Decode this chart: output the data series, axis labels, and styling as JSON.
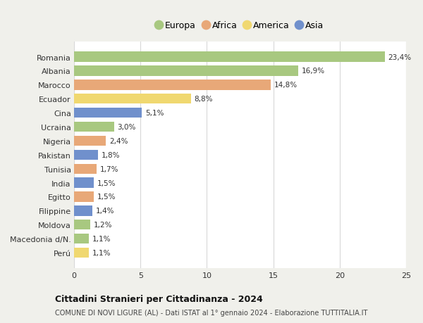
{
  "categories": [
    "Romania",
    "Albania",
    "Marocco",
    "Ecuador",
    "Cina",
    "Ucraina",
    "Nigeria",
    "Pakistan",
    "Tunisia",
    "India",
    "Egitto",
    "Filippine",
    "Moldova",
    "Macedonia d/N.",
    "Perú"
  ],
  "values": [
    23.4,
    16.9,
    14.8,
    8.8,
    5.1,
    3.0,
    2.4,
    1.8,
    1.7,
    1.5,
    1.5,
    1.4,
    1.2,
    1.1,
    1.1
  ],
  "labels": [
    "23,4%",
    "16,9%",
    "14,8%",
    "8,8%",
    "5,1%",
    "3,0%",
    "2,4%",
    "1,8%",
    "1,7%",
    "1,5%",
    "1,5%",
    "1,4%",
    "1,2%",
    "1,1%",
    "1,1%"
  ],
  "continent": [
    "Europa",
    "Europa",
    "Africa",
    "America",
    "Asia",
    "Europa",
    "Africa",
    "Asia",
    "Africa",
    "Asia",
    "Africa",
    "Asia",
    "Europa",
    "Europa",
    "America"
  ],
  "colors": {
    "Europa": "#a8c880",
    "Africa": "#e8a878",
    "America": "#f0d870",
    "Asia": "#7090cc"
  },
  "legend_order": [
    "Europa",
    "Africa",
    "America",
    "Asia"
  ],
  "xlim": [
    0,
    25
  ],
  "xticks": [
    0,
    5,
    10,
    15,
    20,
    25
  ],
  "title": "Cittadini Stranieri per Cittadinanza - 2024",
  "subtitle": "COMUNE DI NOVI LIGURE (AL) - Dati ISTAT al 1° gennaio 2024 - Elaborazione TUTTITALIA.IT",
  "bg_color": "#f0f0eb",
  "bar_bg_color": "#ffffff",
  "grid_color": "#d8d8d8"
}
